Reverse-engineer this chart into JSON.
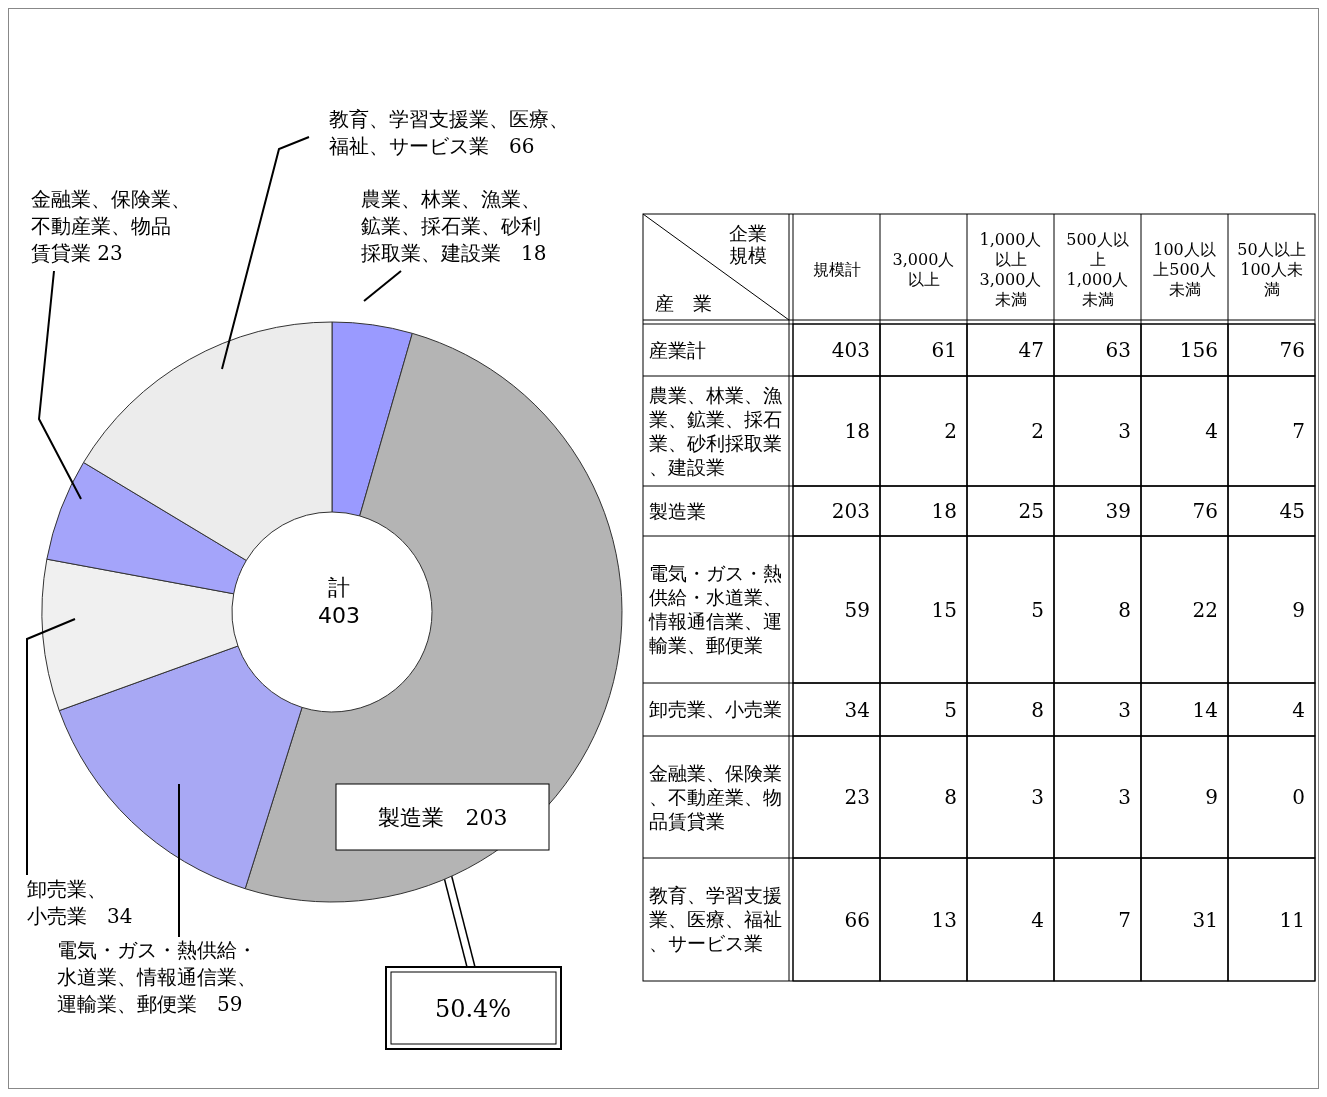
{
  "chart_data": [
    {
      "type": "donut",
      "categories": [
        "農業、林業、漁業、鉱業、採石業、砂利採取業、建設業　18",
        "製造業　203",
        "電気・ガス・熱供給・水道業、情報通信業、運輸業、郵便業　59",
        "卸売業、小売業　34",
        "金融業、保険業、不動産業、物品賃貸業 23",
        "教育、学習支援業、医療、福祉、サービス業　66"
      ],
      "values": [
        18,
        203,
        59,
        34,
        23,
        66
      ],
      "colors": [
        "#9a9aff",
        "#b4b4b4",
        "#a8a8f4",
        "#f0f0f0",
        "#a4a4fa",
        "#ececec"
      ],
      "legend": false,
      "annotations": [
        "計",
        "403",
        "50.4%"
      ]
    },
    {
      "type": "heatmap",
      "data_labels": true,
      "xlabel": "企業規模",
      "ylabel": "産　業",
      "categories": [
        "規模計",
        "3,000人以上",
        "1,000人以上3,000人未満",
        "500人以上1,000人未満",
        "100人以上500人未満",
        "50人以上100人未満"
      ],
      "y_categories": [
        "産業計",
        "農業、林業、漁業、鉱業、採石業、砂利採取業、建設業",
        "製造業",
        "電気・ガス・熱供給・水道業、情報通信業、運輸業、郵便業",
        "卸売業、小売業",
        "金融業、保険業、不動産業、物品賃貸業",
        "教育、学習支援業、医療、福祉、サービス業"
      ],
      "cells": [
        [
          403,
          61,
          47,
          63,
          156,
          76
        ],
        [
          18,
          2,
          2,
          3,
          4,
          7
        ],
        [
          203,
          18,
          25,
          39,
          76,
          45
        ],
        [
          59,
          15,
          5,
          8,
          22,
          9
        ],
        [
          34,
          5,
          8,
          3,
          14,
          4
        ],
        [
          23,
          8,
          3,
          3,
          9,
          0
        ],
        [
          66,
          13,
          4,
          7,
          31,
          11
        ]
      ]
    }
  ]
}
